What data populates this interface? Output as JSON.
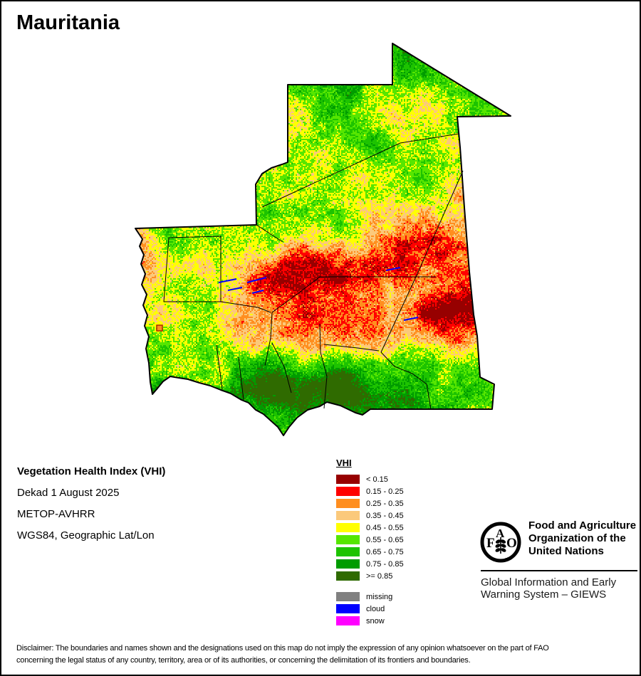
{
  "title": "Mauritania",
  "info": {
    "line1": "Vegetation Health Index (VHI)",
    "line2": "Dekad 1 August 2025",
    "line3": "METOP-AVHRR",
    "line4": "WGS84, Geographic Lat/Lon"
  },
  "legend": {
    "title": "VHI",
    "items": [
      {
        "label": "< 0.15",
        "color": "#970000"
      },
      {
        "label": "0.15 - 0.25",
        "color": "#FF0000"
      },
      {
        "label": "0.25 - 0.35",
        "color": "#FF8E1F"
      },
      {
        "label": "0.35 - 0.45",
        "color": "#FBC97B"
      },
      {
        "label": "0.45 - 0.55",
        "color": "#FFFF00"
      },
      {
        "label": "0.55 - 0.65",
        "color": "#56E600"
      },
      {
        "label": "0.65 - 0.75",
        "color": "#1DC300"
      },
      {
        "label": "0.75 - 0.85",
        "color": "#009C00"
      },
      {
        "label": ">= 0.85",
        "color": "#2F6B00"
      }
    ],
    "extra_items": [
      {
        "label": "missing",
        "color": "#808080"
      },
      {
        "label": "cloud",
        "color": "#0000FF"
      },
      {
        "label": "snow",
        "color": "#FF00FF"
      }
    ]
  },
  "fao": {
    "org_line1": "Food and Agriculture",
    "org_line2": "Organization of the",
    "org_line3": "United Nations",
    "giews_line1": "Global Information and Early",
    "giews_line2": "Warning System – GIEWS",
    "logo_f": "F",
    "logo_a": "A",
    "logo_o": "O",
    "motto_left": "FIAT",
    "motto_right": "PANIS"
  },
  "disclaimer": {
    "line1": "Disclaimer: The boundaries and names shown and the designations used on this map do not imply the expression of any opinion whatsoever on the part of FAO",
    "line2": "concerning the legal status of any country, territory, area or of its authorities, or concerning the delimitation of its frontiers and boundaries."
  }
}
